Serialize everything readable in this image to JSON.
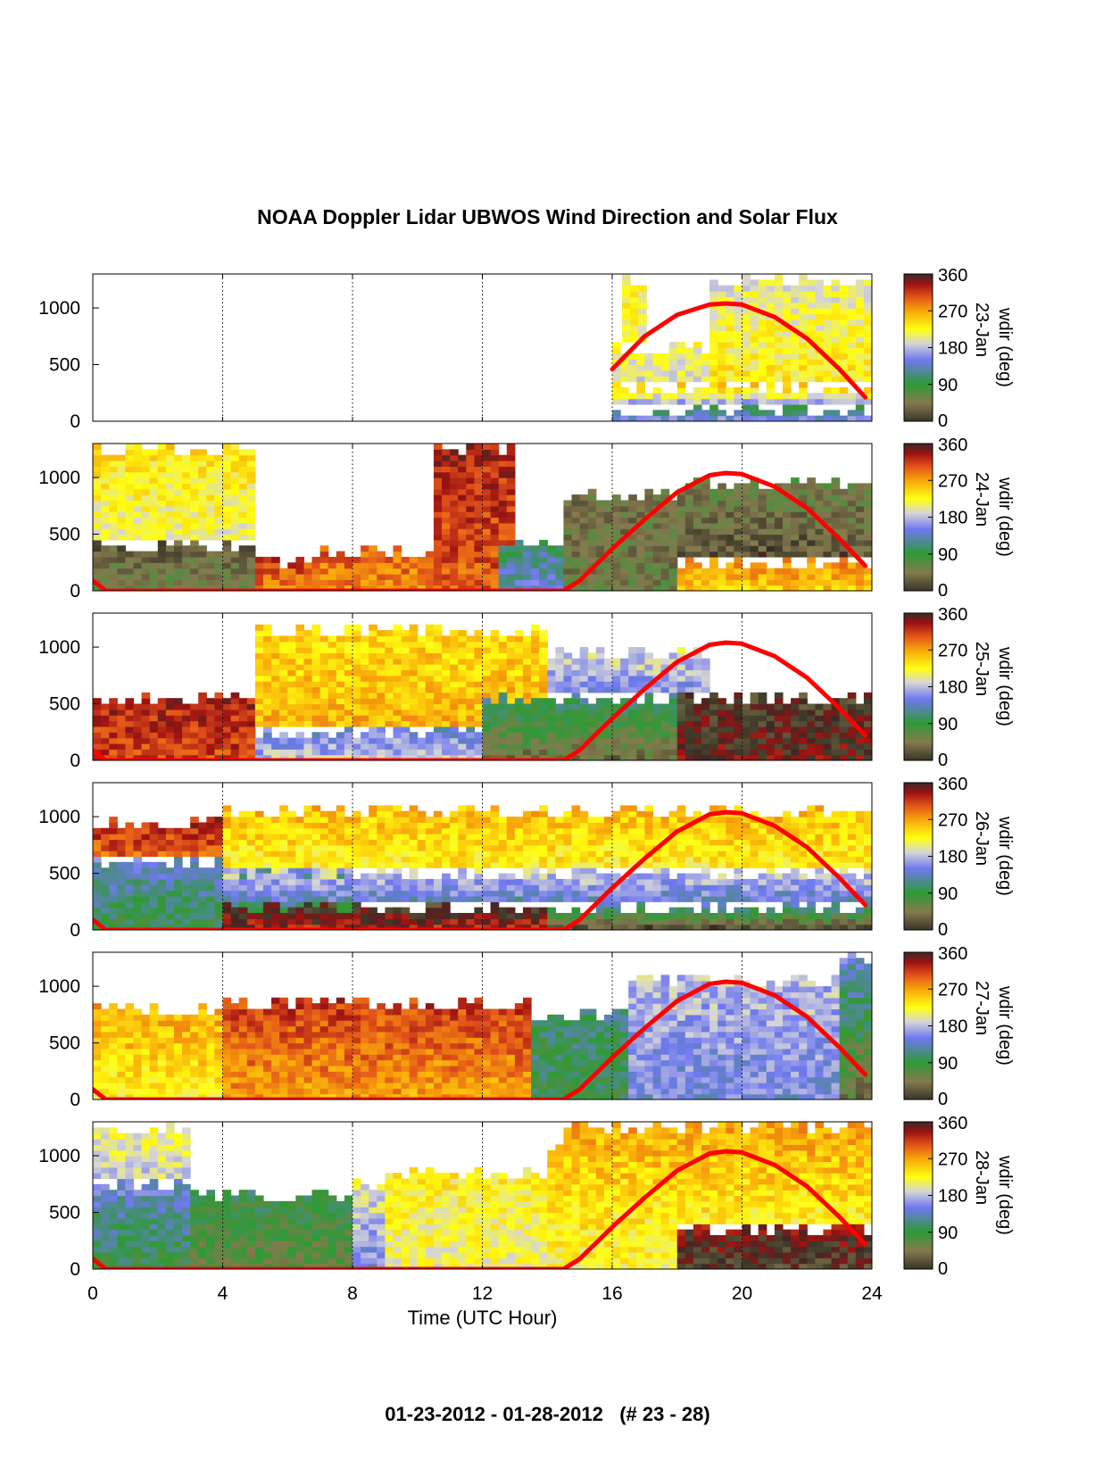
{
  "title": "NOAA Doppler Lidar UBWOS Wind Direction and Solar Flux",
  "footer": "01-23-2012 - 01-28-2012   (# 23 - 28)",
  "chart_data": {
    "type": "heatmap",
    "xlabel": "Time (UTC Hour)",
    "xlim": [
      0,
      24
    ],
    "x_ticks": [
      "0",
      "4",
      "8",
      "12",
      "16",
      "20",
      "24"
    ],
    "ylim": [
      0,
      1300
    ],
    "y_ticks": [
      "0",
      "500",
      "1000"
    ],
    "colorbar": {
      "label": "wdir (deg)",
      "range": [
        0,
        360
      ],
      "ticks": [
        "0",
        "90",
        "180",
        "270",
        "360"
      ],
      "stops": [
        {
          "v": 0,
          "color": "#3a3528"
        },
        {
          "v": 45,
          "color": "#857a4e"
        },
        {
          "v": 90,
          "color": "#2e9a34"
        },
        {
          "v": 150,
          "color": "#6f78f0"
        },
        {
          "v": 190,
          "color": "#d6d6d6"
        },
        {
          "v": 225,
          "color": "#ffff10"
        },
        {
          "v": 270,
          "color": "#f8a40a"
        },
        {
          "v": 305,
          "color": "#e0501a"
        },
        {
          "v": 335,
          "color": "#9e1212"
        },
        {
          "v": 360,
          "color": "#3b2a26"
        }
      ]
    },
    "solar_flux_color": "#ff0000",
    "panels": [
      {
        "date": "23-Jan",
        "solar_flux_x": [
          16,
          17,
          18,
          19,
          19.5,
          20,
          21,
          22,
          23,
          23.8
        ],
        "solar_flux_y": [
          460,
          750,
          940,
          1030,
          1040,
          1030,
          920,
          730,
          460,
          210
        ],
        "regions": [
          {
            "t": [
              16,
              24
            ],
            "h": [
              0,
              150
            ],
            "d": [
              150,
              60
            ]
          },
          {
            "t": [
              16,
              24
            ],
            "h": [
              150,
              350
            ],
            "d": [
              180,
              280
            ]
          },
          {
            "t": [
              16,
              19
            ],
            "h": [
              350,
              700
            ],
            "d": [
              200,
              215
            ]
          },
          {
            "t": [
              19,
              24
            ],
            "h": [
              350,
              1300
            ],
            "d": [
              230,
              200
            ]
          },
          {
            "t": [
              16.3,
              17
            ],
            "h": [
              700,
              1300
            ],
            "d": [
              215,
              225
            ]
          }
        ]
      },
      {
        "date": "24-Jan",
        "solar_flux_x": [
          0,
          0.4,
          14.5,
          15,
          16,
          17,
          18,
          19,
          19.5,
          20,
          21,
          22,
          23,
          23.8
        ],
        "solar_flux_y": [
          90,
          0,
          0,
          90,
          370,
          630,
          870,
          1020,
          1040,
          1030,
          920,
          730,
          460,
          220
        ],
        "regions": [
          {
            "t": [
              0,
              5
            ],
            "h": [
              0,
              450
            ],
            "d": [
              60,
              20
            ]
          },
          {
            "t": [
              0,
              5
            ],
            "h": [
              450,
              1300
            ],
            "d": [
              210,
              240
            ]
          },
          {
            "t": [
              5,
              7
            ],
            "h": [
              0,
              300
            ],
            "d": [
              290,
              320
            ]
          },
          {
            "t": [
              7,
              10.5
            ],
            "h": [
              0,
              400
            ],
            "d": [
              280,
              300
            ]
          },
          {
            "t": [
              10.5,
              13
            ],
            "h": [
              0,
              1300
            ],
            "d": [
              300,
              330
            ]
          },
          {
            "t": [
              12.5,
              14.5
            ],
            "h": [
              0,
              500
            ],
            "d": [
              140,
              100
            ]
          },
          {
            "t": [
              14.5,
              18
            ],
            "h": [
              0,
              900
            ],
            "d": [
              50,
              40
            ]
          },
          {
            "t": [
              18,
              24
            ],
            "h": [
              0,
              300
            ],
            "d": [
              250,
              290
            ]
          },
          {
            "t": [
              18,
              24
            ],
            "h": [
              300,
              1000
            ],
            "d": [
              20,
              60
            ]
          }
        ]
      },
      {
        "date": "25-Jan",
        "solar_flux_x": [
          0,
          0.4,
          14.5,
          15,
          16,
          17,
          18,
          19,
          19.5,
          20,
          21,
          22,
          23,
          23.8
        ],
        "solar_flux_y": [
          90,
          0,
          0,
          90,
          370,
          630,
          870,
          1020,
          1040,
          1030,
          920,
          730,
          460,
          220
        ],
        "regions": [
          {
            "t": [
              0,
              5
            ],
            "h": [
              0,
              600
            ],
            "d": [
              310,
              330
            ]
          },
          {
            "t": [
              5,
              12
            ],
            "h": [
              0,
              300
            ],
            "d": [
              180,
              140
            ]
          },
          {
            "t": [
              5,
              14
            ],
            "h": [
              300,
              1200
            ],
            "d": [
              260,
              240
            ]
          },
          {
            "t": [
              12,
              18
            ],
            "h": [
              0,
              600
            ],
            "d": [
              40,
              120
            ]
          },
          {
            "t": [
              14,
              19
            ],
            "h": [
              600,
              1000
            ],
            "d": [
              160,
              200
            ]
          },
          {
            "t": [
              18,
              24
            ],
            "h": [
              0,
              600
            ],
            "d": [
              350,
              10
            ]
          }
        ]
      },
      {
        "date": "26-Jan",
        "solar_flux_x": [
          0,
          0.4,
          14.5,
          15,
          16,
          17,
          18,
          19,
          19.5,
          20,
          21,
          22,
          23,
          23.8
        ],
        "solar_flux_y": [
          90,
          0,
          0,
          90,
          370,
          630,
          870,
          1020,
          1040,
          1030,
          920,
          730,
          460,
          220
        ],
        "regions": [
          {
            "t": [
              0,
              8
            ],
            "h": [
              0,
              650
            ],
            "d": [
              90,
              150
            ]
          },
          {
            "t": [
              0,
              4
            ],
            "h": [
              650,
              1000
            ],
            "d": [
              300,
              330
            ]
          },
          {
            "t": [
              4,
              14
            ],
            "h": [
              0,
              250
            ],
            "d": [
              330,
              20
            ]
          },
          {
            "t": [
              4,
              24
            ],
            "h": [
              250,
              550
            ],
            "d": [
              140,
              200
            ]
          },
          {
            "t": [
              4,
              24
            ],
            "h": [
              550,
              1100
            ],
            "d": [
              230,
              260
            ]
          },
          {
            "t": [
              14,
              24
            ],
            "h": [
              0,
              250
            ],
            "d": [
              20,
              160
            ]
          }
        ]
      },
      {
        "date": "27-Jan",
        "solar_flux_x": [
          0,
          0.4,
          14.5,
          15,
          16,
          17,
          18,
          19,
          19.5,
          20,
          21,
          22,
          23,
          23.8
        ],
        "solar_flux_y": [
          90,
          0,
          0,
          90,
          370,
          630,
          870,
          1020,
          1040,
          1030,
          920,
          730,
          460,
          220
        ],
        "regions": [
          {
            "t": [
              0,
              4
            ],
            "h": [
              0,
              850
            ],
            "d": [
              230,
              270
            ]
          },
          {
            "t": [
              4,
              13.5
            ],
            "h": [
              0,
              900
            ],
            "d": [
              270,
              320
            ]
          },
          {
            "t": [
              13.5,
              16.5
            ],
            "h": [
              0,
              800
            ],
            "d": [
              90,
              110
            ]
          },
          {
            "t": [
              16.5,
              23
            ],
            "h": [
              0,
              1100
            ],
            "d": [
              150,
              180
            ]
          },
          {
            "t": [
              23,
              24
            ],
            "h": [
              0,
              1300
            ],
            "d": [
              40,
              150
            ]
          }
        ]
      },
      {
        "date": "28-Jan",
        "solar_flux_x": [
          0,
          0.4,
          14.5,
          15,
          16,
          17,
          18,
          19,
          19.5,
          20,
          21,
          22,
          23,
          23.8
        ],
        "solar_flux_y": [
          90,
          0,
          0,
          90,
          370,
          630,
          870,
          1020,
          1040,
          1030,
          920,
          730,
          460,
          220
        ],
        "regions": [
          {
            "t": [
              0,
              3
            ],
            "h": [
              0,
              800
            ],
            "d": [
              90,
              150
            ]
          },
          {
            "t": [
              0,
              3
            ],
            "h": [
              800,
              1300
            ],
            "d": [
              190,
              215
            ]
          },
          {
            "t": [
              3,
              8
            ],
            "h": [
              0,
              700
            ],
            "d": [
              60,
              100
            ]
          },
          {
            "t": [
              8,
              14
            ],
            "h": [
              0,
              800
            ],
            "d": [
              150,
              210
            ]
          },
          {
            "t": [
              9,
              14
            ],
            "h": [
              0,
              900
            ],
            "d": [
              210,
              230
            ]
          },
          {
            "t": [
              14,
              18
            ],
            "h": [
              0,
              1100
            ],
            "d": [
              220,
              260
            ]
          },
          {
            "t": [
              18,
              24
            ],
            "h": [
              0,
              400
            ],
            "d": [
              10,
              340
            ]
          },
          {
            "t": [
              14.5,
              24
            ],
            "h": [
              400,
              1300
            ],
            "d": [
              230,
              270
            ]
          }
        ]
      }
    ]
  }
}
